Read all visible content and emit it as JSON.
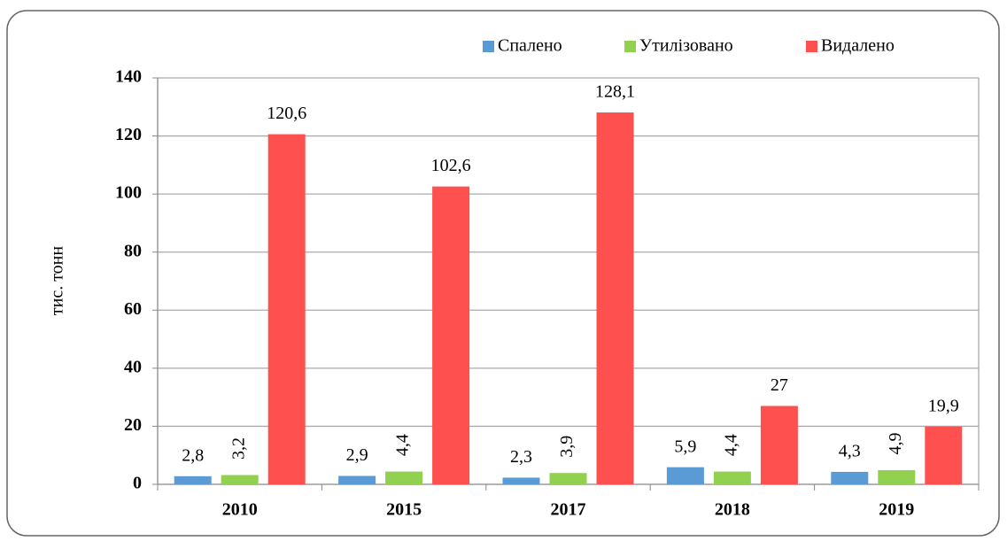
{
  "chart_data": {
    "type": "bar",
    "y_label": "тис. тонн",
    "categories": [
      "2010",
      "2015",
      "2017",
      "2018",
      "2019"
    ],
    "series": [
      {
        "name": "Спалено",
        "color": "#5b9bd5",
        "values": [
          2.8,
          2.9,
          2.3,
          5.9,
          4.3
        ],
        "value_labels": [
          "2,8",
          "2,9",
          "2,3",
          "5,9",
          "4,3"
        ]
      },
      {
        "name": "Утилізовано",
        "color": "#92d050",
        "values": [
          3.2,
          4.4,
          3.9,
          4.4,
          4.9
        ],
        "value_labels": [
          "3,2",
          "4,4",
          "3,9",
          "4,4",
          "4,9"
        ]
      },
      {
        "name": "Видалено",
        "color": "#ff5050",
        "values": [
          120.6,
          102.6,
          128.1,
          27,
          19.9
        ],
        "value_labels": [
          "120,6",
          "102,6",
          "128,1",
          "27",
          "19,9"
        ]
      }
    ],
    "ylim": [
      0,
      140
    ],
    "yticks": [
      0,
      20,
      40,
      60,
      80,
      100,
      120,
      140
    ],
    "grid": true,
    "legend": "top-right"
  }
}
